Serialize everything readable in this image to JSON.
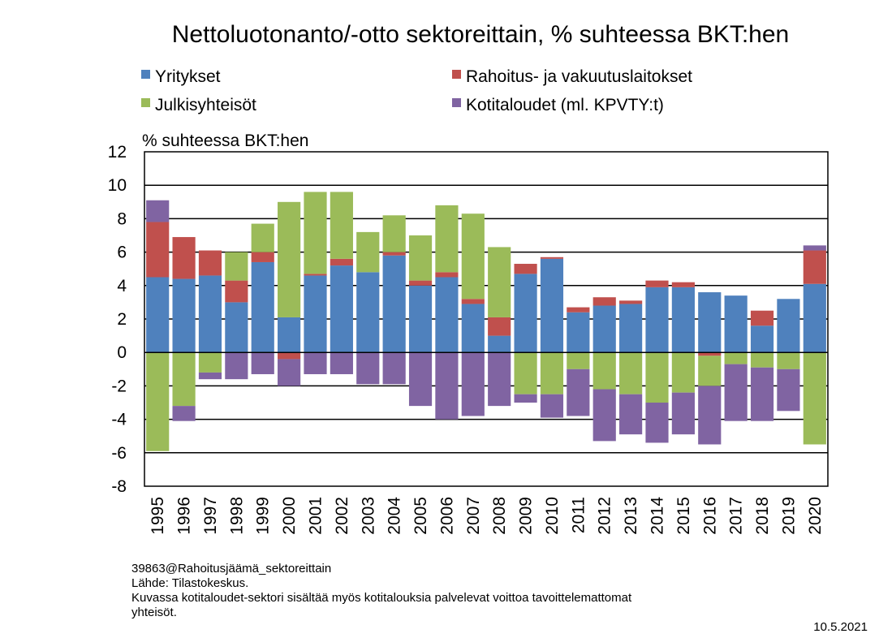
{
  "chart_data": {
    "type": "bar",
    "stacked": true,
    "title": "Nettoluotonanto/-otto sektoreittain, % suhteessa BKT:hen",
    "ylabel": "% suhteessa BKT:hen",
    "ylim": [
      -8,
      12
    ],
    "yticks": [
      "12",
      "10",
      "8",
      "6",
      "4",
      "2",
      "0",
      "-2",
      "-4",
      "-6",
      "-8"
    ],
    "grid": true,
    "legend_position": "top",
    "categories": [
      "1995",
      "1996",
      "1997",
      "1998",
      "1999",
      "2000",
      "2001",
      "2002",
      "2003",
      "2004",
      "2005",
      "2006",
      "2007",
      "2008",
      "2009",
      "2010",
      "2011",
      "2012",
      "2013",
      "2014",
      "2015",
      "2016",
      "2017",
      "2018",
      "2019",
      "2020"
    ],
    "series": [
      {
        "name": "Yritykset",
        "color": "#4F81BD",
        "values": [
          4.5,
          4.4,
          4.6,
          3.0,
          5.4,
          2.1,
          4.6,
          5.2,
          4.8,
          5.8,
          4.0,
          4.5,
          2.9,
          1.0,
          4.7,
          5.6,
          2.4,
          2.8,
          2.9,
          3.9,
          3.9,
          3.6,
          3.4,
          1.6,
          3.2,
          4.1
        ]
      },
      {
        "name": "Rahoitus- ja vakuutuslaitokset",
        "color": "#C0504D",
        "values": [
          3.3,
          2.5,
          1.5,
          1.3,
          0.6,
          -0.4,
          0.1,
          0.4,
          0.0,
          0.2,
          0.3,
          0.3,
          0.3,
          1.1,
          0.6,
          0.1,
          0.3,
          0.5,
          0.2,
          0.4,
          0.3,
          -0.2,
          0.0,
          0.9,
          0.0,
          2.0
        ]
      },
      {
        "name": "Julkisyhteisöt",
        "color": "#9BBB59",
        "values": [
          -5.9,
          -3.2,
          -1.2,
          1.7,
          1.7,
          6.9,
          4.9,
          4.0,
          2.4,
          2.2,
          2.7,
          4.0,
          5.1,
          4.2,
          -2.5,
          -2.5,
          -1.0,
          -2.2,
          -2.5,
          -3.0,
          -2.4,
          -1.8,
          -0.7,
          -0.9,
          -1.0,
          -5.5
        ]
      },
      {
        "name": "Kotitaloudet (ml. KPVTY:t)",
        "color": "#8064A2",
        "values": [
          1.3,
          -0.9,
          -0.4,
          -1.6,
          -1.3,
          -1.6,
          -1.3,
          -1.3,
          -1.9,
          -1.9,
          -3.2,
          -4.0,
          -3.8,
          -3.2,
          -0.5,
          -1.4,
          -2.8,
          -3.1,
          -2.4,
          -2.4,
          -2.5,
          -3.5,
          -3.4,
          -3.2,
          -2.5,
          0.3
        ]
      }
    ]
  },
  "footer": {
    "line1": "39863@Rahoitusjäämä_sektoreittain",
    "line2": "Lähde: Tilastokeskus.",
    "line3": "Kuvassa kotitaloudet-sektori sisältää myös kotitalouksia palvelevat voittoa tavoittelemattomat",
    "line4": "yhteisöt.",
    "date": "10.5.2021"
  }
}
